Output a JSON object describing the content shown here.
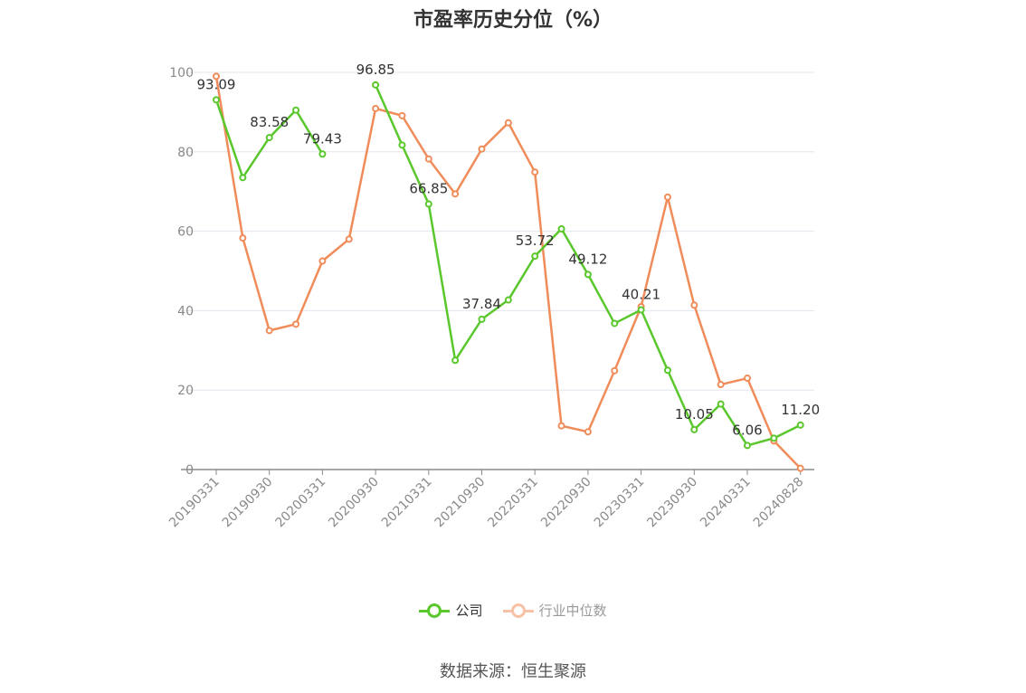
{
  "chart_data": {
    "type": "line",
    "title": "市盈率历史分位（%）",
    "source": "数据来源：恒生聚源",
    "ylim": [
      0,
      100
    ],
    "yticks": [
      0,
      20,
      40,
      60,
      80,
      100
    ],
    "grid": true,
    "legend_position": "bottom",
    "x": [
      "20190331",
      "20190630",
      "20190930",
      "20191231",
      "20200331",
      "20200630",
      "20200930",
      "20201231",
      "20210331",
      "20210630",
      "20210930",
      "20211231",
      "20220331",
      "20220630",
      "20220930",
      "20221231",
      "20230331",
      "20230630",
      "20230930",
      "20231231",
      "20240331",
      "20240630",
      "20240828"
    ],
    "x_tick_labels": [
      "20190331",
      "20190930",
      "20200331",
      "20200930",
      "20210331",
      "20210930",
      "20220331",
      "20220930",
      "20230331",
      "20230930",
      "20240331",
      "20240828"
    ],
    "series": [
      {
        "name": "公司",
        "color": "#5ac72c",
        "values": [
          93.09,
          73.5,
          83.58,
          90.5,
          79.43,
          null,
          96.85,
          81.7,
          66.85,
          27.5,
          37.84,
          42.7,
          53.72,
          60.6,
          49.12,
          36.8,
          40.21,
          25.0,
          10.05,
          16.5,
          6.06,
          7.9,
          11.2
        ],
        "labels": [
          "93.09",
          null,
          "83.58",
          null,
          "79.43",
          null,
          "96.85",
          null,
          "66.85",
          null,
          "37.84",
          null,
          "53.72",
          null,
          "49.12",
          null,
          "40.21",
          null,
          "10.05",
          null,
          "6.06",
          null,
          "11.20"
        ]
      },
      {
        "name": "行业中位数",
        "color": "#f08c5a",
        "values": [
          99.0,
          58.3,
          35.0,
          36.6,
          52.5,
          58.0,
          90.9,
          89.1,
          78.2,
          69.4,
          80.7,
          87.3,
          74.9,
          11.0,
          9.5,
          24.9,
          41.0,
          68.6,
          41.4,
          21.4,
          23.0,
          7.2,
          0.3
        ]
      }
    ]
  }
}
